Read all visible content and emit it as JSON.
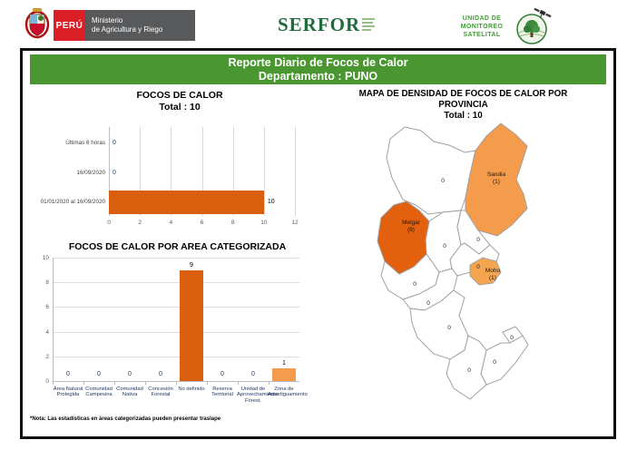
{
  "header": {
    "peru_label": "PERÚ",
    "ministry_line1": "Ministerio",
    "ministry_line2": "de Agricultura y Riego",
    "serfor_label": "SERFOR",
    "ums_line1": "UNIDAD DE",
    "ums_line2": "MONITOREO",
    "ums_line3": "SATELITAL"
  },
  "title": {
    "line1": "Reporte Diario de Focos de Calor",
    "line2": "Departamento : PUNO"
  },
  "footnote": "*Nota: Las estadísticas en áreas categorizadas pueden presentar traslape",
  "colors": {
    "accent_green": "#4a9631",
    "peru_red": "#db1f26",
    "ministry_gray": "#58595b",
    "serfor_green": "#1e6b3c",
    "ums_green": "#3f9e33",
    "bar_dark_orange": "#d95f0e",
    "bar_light_orange": "#f59b4c"
  },
  "chart_data": [
    {
      "type": "bar",
      "orientation": "horizontal",
      "title": "FOCOS DE CALOR",
      "subtitle": "Total : 10",
      "categories": [
        "Últimas 6 horas",
        "16/09/2020",
        "01/01/2020 al 16/09/2020"
      ],
      "values": [
        0,
        0,
        10
      ],
      "xlim": [
        0,
        12
      ],
      "xticks": [
        0,
        2,
        4,
        6,
        8,
        10,
        12
      ],
      "bar_color": "#d95f0e",
      "grid": true
    },
    {
      "type": "bar",
      "orientation": "vertical",
      "title": "FOCOS DE CALOR POR AREA CATEGORIZADA",
      "categories": [
        "Área Natural Protegida",
        "Comunidad Campesina",
        "Comunidad Nativa",
        "Concesión Forestal",
        "No definido",
        "Reserva Territorial",
        "Unidad de Aprovechamiento Forest.",
        "Zona de Amortiguamiento"
      ],
      "values": [
        0,
        0,
        0,
        0,
        9,
        0,
        0,
        1
      ],
      "bar_colors": [
        "",
        "",
        "",
        "",
        "#d95f0e",
        "",
        "",
        "#f59b4c"
      ],
      "ylim": [
        0,
        10
      ],
      "yticks": [
        0,
        2,
        4,
        6,
        8,
        10
      ],
      "grid": true
    }
  ],
  "map": {
    "title": "MAPA DE DENSIDAD DE FOCOS DE CALOR POR PROVINCIA",
    "subtitle": "Total : 10",
    "default_fill": "#ffffff",
    "border_color": "#a0a0a0",
    "provinces": [
      {
        "name": "",
        "value": 0
      },
      {
        "name": "Sandia",
        "value": 1,
        "fill": "#f59b4c"
      },
      {
        "name": "Melgar",
        "value": 8,
        "fill": "#e2600e"
      },
      {
        "name": "",
        "value": 0
      },
      {
        "name": "",
        "value": 0
      },
      {
        "name": "",
        "value": 0
      },
      {
        "name": "Moho",
        "value": 1,
        "fill": "#f5a54f"
      },
      {
        "name": "",
        "value": 0
      },
      {
        "name": "",
        "value": 0
      },
      {
        "name": "",
        "value": 0
      },
      {
        "name": "",
        "value": 0
      },
      {
        "name": "",
        "value": 0
      },
      {
        "name": "",
        "value": 0
      }
    ]
  }
}
